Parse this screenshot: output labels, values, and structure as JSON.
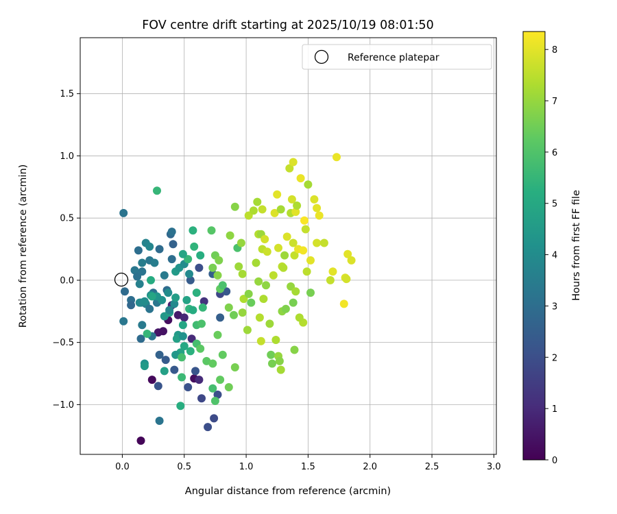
{
  "chart_data": {
    "type": "scatter",
    "title": "FOV centre drift starting at 2025/10/19 08:01:50",
    "xlabel": "Angular distance from reference (arcmin)",
    "ylabel": "Rotation from reference (arcmin)",
    "xlim": [
      -0.34,
      3.02
    ],
    "ylim": [
      -1.4,
      1.95
    ],
    "xticks": [
      0.0,
      0.5,
      1.0,
      1.5,
      2.0,
      2.5,
      3.0
    ],
    "xtick_labels": [
      "0.0",
      "0.5",
      "1.0",
      "1.5",
      "2.0",
      "2.5",
      "3.0"
    ],
    "yticks": [
      -1.0,
      -0.5,
      0.0,
      0.5,
      1.0,
      1.5
    ],
    "ytick_labels": [
      "−1.0",
      "−0.5",
      "0.0",
      "0.5",
      "1.0",
      "1.5"
    ],
    "grid": true,
    "legend": {
      "position": "top-right",
      "entries": [
        "Reference platepar"
      ]
    },
    "reference": {
      "x": 0.0,
      "y": 0.0,
      "label": "Reference platepar"
    },
    "colorbar": {
      "label": "Hours from first FF file",
      "colormap": "viridis",
      "range": [
        0,
        8.35
      ],
      "ticks": [
        0,
        1,
        2,
        3,
        4,
        5,
        6,
        7,
        8
      ],
      "tick_labels": [
        "0",
        "1",
        "2",
        "3",
        "4",
        "5",
        "6",
        "7",
        "8"
      ]
    },
    "series": [
      {
        "name": "FOV centre",
        "points": [
          [
            0.15,
            -1.29,
            0.1
          ],
          [
            0.24,
            -0.8,
            0.2
          ],
          [
            0.29,
            -0.42,
            0.5
          ],
          [
            0.33,
            -0.41,
            0.4
          ],
          [
            0.37,
            -0.32,
            0.3
          ],
          [
            0.45,
            -0.28,
            0.6
          ],
          [
            0.4,
            -0.2,
            0.8
          ],
          [
            0.58,
            -0.79,
            0.3
          ],
          [
            0.62,
            -0.8,
            1.0
          ],
          [
            0.56,
            -0.47,
            1.0
          ],
          [
            0.5,
            -0.3,
            0.9
          ],
          [
            0.66,
            -0.17,
            1.2
          ],
          [
            0.64,
            -0.95,
            1.8
          ],
          [
            0.69,
            -1.18,
            2.0
          ],
          [
            0.74,
            -1.11,
            1.9
          ],
          [
            0.77,
            -0.92,
            2.0
          ],
          [
            0.59,
            -0.73,
            2.2
          ],
          [
            0.53,
            -0.86,
            2.1
          ],
          [
            0.42,
            -0.72,
            2.3
          ],
          [
            0.35,
            -0.64,
            2.4
          ],
          [
            0.29,
            -0.85,
            2.2
          ],
          [
            0.3,
            -0.6,
            2.6
          ],
          [
            0.62,
            0.1,
            2.0
          ],
          [
            0.79,
            -0.11,
            1.8
          ],
          [
            0.79,
            -0.3,
            2.5
          ],
          [
            0.84,
            -0.09,
            2.3
          ],
          [
            0.55,
            0.0,
            2.4
          ],
          [
            0.73,
            0.05,
            2.5
          ],
          [
            0.36,
            -0.08,
            2.9
          ],
          [
            0.39,
            0.37,
            2.8
          ],
          [
            0.41,
            0.29,
            2.6
          ],
          [
            0.3,
            0.25,
            2.9
          ],
          [
            0.4,
            0.39,
            3.1
          ],
          [
            0.4,
            0.17,
            3.0
          ],
          [
            0.3,
            -1.13,
            3.2
          ],
          [
            0.15,
            -0.47,
            2.9
          ],
          [
            0.16,
            -0.36,
            3.4
          ],
          [
            0.24,
            -0.45,
            3.2
          ],
          [
            0.01,
            0.54,
            3.2
          ],
          [
            0.13,
            0.24,
            3.0
          ],
          [
            0.16,
            0.14,
            3.5
          ],
          [
            0.19,
            0.3,
            3.7
          ],
          [
            0.22,
            0.27,
            3.8
          ],
          [
            0.1,
            0.08,
            3.3
          ],
          [
            0.12,
            0.03,
            3.1
          ],
          [
            0.14,
            -0.03,
            3.6
          ],
          [
            0.16,
            0.07,
            3.2
          ],
          [
            0.22,
            0.16,
            3.3
          ],
          [
            0.26,
            0.14,
            3.5
          ],
          [
            0.34,
            0.04,
            3.4
          ],
          [
            0.25,
            -0.1,
            3.1
          ],
          [
            0.28,
            -0.18,
            3.3
          ],
          [
            0.02,
            -0.09,
            2.9
          ],
          [
            0.07,
            -0.16,
            3.0
          ],
          [
            0.07,
            -0.2,
            2.8
          ],
          [
            0.15,
            -0.18,
            3.5
          ],
          [
            0.19,
            -0.19,
            3.6
          ],
          [
            0.22,
            -0.23,
            3.2
          ],
          [
            0.14,
            -0.18,
            3.9
          ],
          [
            0.18,
            -0.17,
            4.0
          ],
          [
            0.23,
            -0.12,
            4.1
          ],
          [
            0.28,
            -0.13,
            4.3
          ],
          [
            0.32,
            -0.16,
            4.2
          ],
          [
            0.01,
            -0.33,
            3.3
          ],
          [
            0.18,
            -0.67,
            4.2
          ],
          [
            0.18,
            -0.69,
            4.5
          ],
          [
            0.34,
            -0.73,
            4.7
          ],
          [
            0.34,
            -0.29,
            4.4
          ],
          [
            0.38,
            -0.26,
            4.6
          ],
          [
            0.42,
            -0.19,
            3.9
          ],
          [
            0.45,
            -0.44,
            4.5
          ],
          [
            0.44,
            -0.47,
            4.7
          ],
          [
            0.47,
            -0.58,
            4.8
          ],
          [
            0.5,
            -0.53,
            5.0
          ],
          [
            0.49,
            -0.36,
            4.9
          ],
          [
            0.49,
            -0.45,
            4.2
          ],
          [
            0.43,
            0.07,
            4.5
          ],
          [
            0.46,
            0.1,
            4.3
          ],
          [
            0.5,
            0.13,
            4.0
          ],
          [
            0.53,
            0.17,
            5.5
          ],
          [
            0.49,
            0.21,
            4.9
          ],
          [
            0.54,
            0.05,
            3.9
          ],
          [
            0.52,
            -0.16,
            4.8
          ],
          [
            0.43,
            -0.14,
            4.6
          ],
          [
            0.37,
            -0.1,
            4.0
          ],
          [
            0.38,
            -0.24,
            3.8
          ],
          [
            0.47,
            -1.01,
            5.2
          ],
          [
            0.48,
            -0.78,
            5.6
          ],
          [
            0.43,
            -0.6,
            4.4
          ],
          [
            0.55,
            -0.57,
            5.3
          ],
          [
            0.48,
            -0.62,
            5.8
          ],
          [
            0.28,
            0.72,
            5.5
          ],
          [
            0.23,
            0.0,
            5.1
          ],
          [
            0.24,
            -0.13,
            4.9
          ],
          [
            0.2,
            -0.43,
            5.5
          ],
          [
            0.57,
            0.4,
            5.3
          ],
          [
            0.58,
            0.27,
            5.4
          ],
          [
            0.63,
            0.2,
            5.2
          ],
          [
            0.6,
            -0.1,
            5.3
          ],
          [
            0.54,
            -0.23,
            5.4
          ],
          [
            0.57,
            -0.24,
            5.1
          ],
          [
            0.6,
            -0.36,
            5.7
          ],
          [
            0.65,
            -0.22,
            5.5
          ],
          [
            0.64,
            -0.35,
            5.9
          ],
          [
            0.6,
            -0.51,
            5.8
          ],
          [
            0.63,
            -0.55,
            6.2
          ],
          [
            0.68,
            -0.65,
            6.2
          ],
          [
            0.73,
            -0.67,
            6.3
          ],
          [
            0.73,
            -0.87,
            5.8
          ],
          [
            0.75,
            -0.97,
            6.0
          ],
          [
            0.79,
            -0.8,
            6.3
          ],
          [
            0.81,
            -0.6,
            6.3
          ],
          [
            0.77,
            -0.44,
            6.4
          ],
          [
            0.86,
            -0.86,
            6.5
          ],
          [
            0.91,
            -0.7,
            6.6
          ],
          [
            0.72,
            0.4,
            6.1
          ],
          [
            0.75,
            0.2,
            6.5
          ],
          [
            0.78,
            0.16,
            6.7
          ],
          [
            0.73,
            0.1,
            6.6
          ],
          [
            0.77,
            0.04,
            6.8
          ],
          [
            0.79,
            -0.07,
            6.3
          ],
          [
            0.81,
            -0.04,
            5.9
          ],
          [
            0.86,
            -0.22,
            6.7
          ],
          [
            0.87,
            0.36,
            6.9
          ],
          [
            0.91,
            0.59,
            6.8
          ],
          [
            0.93,
            0.26,
            5.9
          ],
          [
            0.9,
            -0.28,
            6.5
          ],
          [
            0.96,
            0.3,
            7.0
          ],
          [
            0.94,
            0.11,
            7.1
          ],
          [
            0.97,
            0.05,
            7.2
          ],
          [
            0.98,
            -0.15,
            7.3
          ],
          [
            0.97,
            -0.26,
            7.0
          ],
          [
            1.01,
            -0.4,
            7.1
          ],
          [
            1.02,
            0.52,
            7.5
          ],
          [
            1.02,
            -0.11,
            6.8
          ],
          [
            1.04,
            -0.18,
            6.4
          ],
          [
            1.06,
            0.56,
            7.3
          ],
          [
            1.09,
            0.63,
            7.2
          ],
          [
            1.1,
            0.37,
            7.4
          ],
          [
            1.12,
            0.37,
            7.1
          ],
          [
            1.13,
            0.57,
            7.6
          ],
          [
            1.13,
            0.25,
            7.5
          ],
          [
            1.15,
            0.33,
            7.8
          ],
          [
            1.08,
            0.14,
            7.2
          ],
          [
            1.1,
            -0.01,
            7.0
          ],
          [
            1.11,
            -0.3,
            7.4
          ],
          [
            1.12,
            -0.49,
            7.6
          ],
          [
            1.14,
            -0.15,
            7.3
          ],
          [
            1.16,
            -0.04,
            6.9
          ],
          [
            1.17,
            0.23,
            7.7
          ],
          [
            1.19,
            -0.35,
            7.1
          ],
          [
            1.21,
            -0.67,
            6.6
          ],
          [
            1.2,
            -0.6,
            6.5
          ],
          [
            1.22,
            0.04,
            7.5
          ],
          [
            1.23,
            0.54,
            7.9
          ],
          [
            1.25,
            0.69,
            8.0
          ],
          [
            1.26,
            0.26,
            7.8
          ],
          [
            1.28,
            0.57,
            7.2
          ],
          [
            1.29,
            0.11,
            7.5
          ],
          [
            1.3,
            0.1,
            7.4
          ],
          [
            1.31,
            0.2,
            7.1
          ],
          [
            1.24,
            -0.48,
            7.3
          ],
          [
            1.26,
            -0.61,
            7.0
          ],
          [
            1.27,
            -0.65,
            6.8
          ],
          [
            1.28,
            -0.72,
            7.2
          ],
          [
            1.29,
            -0.25,
            6.9
          ],
          [
            1.32,
            -0.23,
            6.7
          ],
          [
            1.33,
            0.35,
            7.9
          ],
          [
            1.35,
            0.9,
            7.6
          ],
          [
            1.36,
            0.54,
            7.4
          ],
          [
            1.37,
            0.65,
            7.8
          ],
          [
            1.38,
            0.95,
            7.9
          ],
          [
            1.38,
            0.3,
            7.7
          ],
          [
            1.39,
            0.2,
            7.6
          ],
          [
            1.4,
            0.55,
            8.0
          ],
          [
            1.41,
            0.6,
            7.3
          ],
          [
            1.36,
            -0.05,
            7.0
          ],
          [
            1.38,
            -0.18,
            6.6
          ],
          [
            1.39,
            -0.56,
            6.8
          ],
          [
            1.4,
            -0.09,
            7.2
          ],
          [
            1.42,
            0.25,
            8.1
          ],
          [
            1.44,
            0.82,
            8.1
          ],
          [
            1.46,
            0.24,
            8.2
          ],
          [
            1.47,
            0.48,
            8.3
          ],
          [
            1.48,
            0.41,
            7.6
          ],
          [
            1.49,
            0.07,
            7.5
          ],
          [
            1.5,
            0.77,
            7.2
          ],
          [
            1.52,
            0.16,
            8.0
          ],
          [
            1.52,
            -0.1,
            6.6
          ],
          [
            1.46,
            -0.34,
            7.4
          ],
          [
            1.43,
            -0.3,
            7.3
          ],
          [
            1.55,
            0.65,
            7.9
          ],
          [
            1.57,
            0.58,
            8.0
          ],
          [
            1.59,
            0.52,
            8.1
          ],
          [
            1.57,
            0.3,
            7.8
          ],
          [
            1.63,
            0.3,
            7.6
          ],
          [
            1.68,
            0.0,
            7.6
          ],
          [
            1.7,
            0.07,
            8.0
          ],
          [
            1.73,
            0.99,
            8.1
          ],
          [
            1.79,
            -0.19,
            8.2
          ],
          [
            1.8,
            0.02,
            7.9
          ],
          [
            1.81,
            0.01,
            7.8
          ],
          [
            1.82,
            0.21,
            8.0
          ],
          [
            1.85,
            0.16,
            7.9
          ]
        ]
      }
    ]
  }
}
